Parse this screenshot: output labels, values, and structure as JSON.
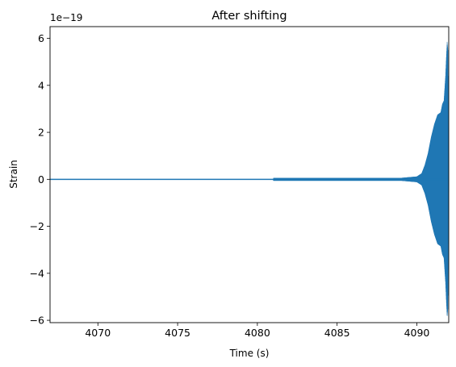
{
  "chart_data": {
    "type": "line",
    "title": "After shifting",
    "xlabel": "Time (s)",
    "ylabel": "Strain",
    "offset_label": "1e−19",
    "xlim": [
      4067.0,
      4092.0
    ],
    "ylim": [
      -6.1,
      6.5
    ],
    "x_ticks": [
      4070,
      4075,
      4080,
      4085,
      4090
    ],
    "x_tick_labels": [
      "4070",
      "4075",
      "4080",
      "4085",
      "4090"
    ],
    "y_ticks": [
      -6,
      -4,
      -2,
      0,
      2,
      4,
      6
    ],
    "y_tick_labels": [
      "−6",
      "−4",
      "−2",
      "0",
      "2",
      "4",
      "6"
    ],
    "grid": false,
    "series": [
      {
        "color": "#1f77b4",
        "envelope": {
          "t": [
            4067.0,
            4081.0,
            4081.0,
            4089.0,
            4090.0,
            4090.3,
            4090.5,
            4090.7,
            4090.9,
            4091.1,
            4091.3,
            4091.5,
            4091.6,
            4091.7,
            4091.8,
            4091.85,
            4091.9,
            4091.95,
            4092.0
          ],
          "amp": [
            0.0,
            0.0,
            0.06,
            0.06,
            0.12,
            0.25,
            0.6,
            1.1,
            1.8,
            2.35,
            2.75,
            2.85,
            3.2,
            3.35,
            4.4,
            5.2,
            5.85,
            5.5,
            0.0
          ]
        }
      }
    ]
  }
}
